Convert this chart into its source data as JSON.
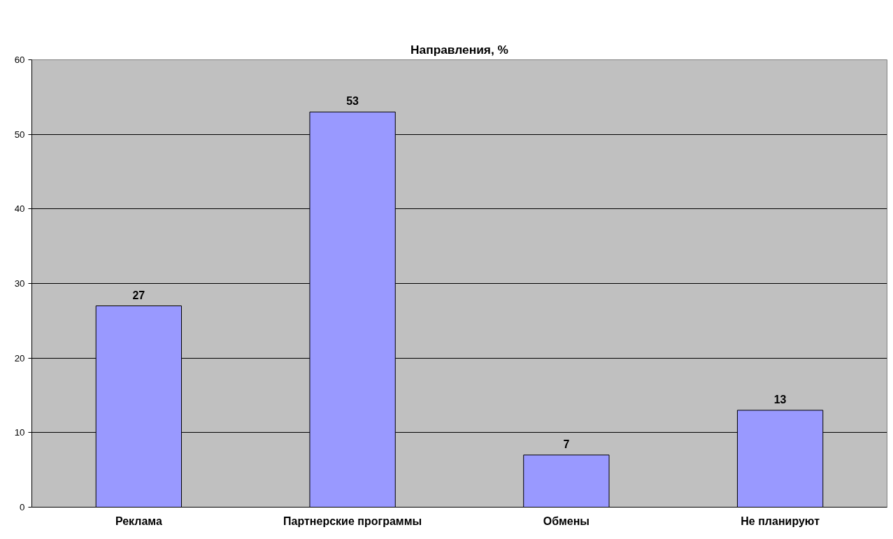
{
  "chart_data": {
    "type": "bar",
    "title": "Направления, %",
    "categories": [
      "Реклама",
      "Партнерские программы",
      "Обмены",
      "Не планируют"
    ],
    "values": [
      27,
      53,
      7,
      13
    ],
    "color": "#9999ff",
    "ylim": [
      0,
      60
    ],
    "yticks": [
      0,
      10,
      20,
      30,
      40,
      50,
      60
    ],
    "grid": "y",
    "data_labels": true
  }
}
